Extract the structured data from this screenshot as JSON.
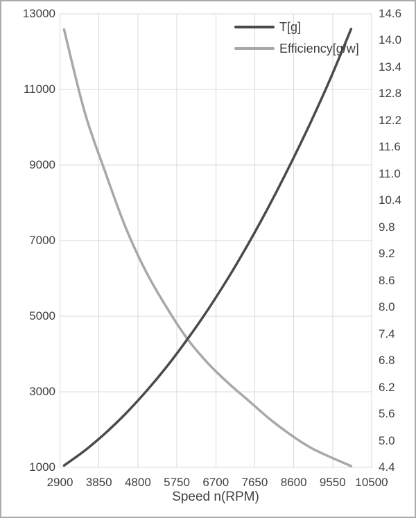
{
  "frame": {
    "background_color": "#ffffff",
    "border_color": "#ababab",
    "text_color": "#404040",
    "gridline_color": "#d9d9d9"
  },
  "chart_data": {
    "type": "line",
    "title": "",
    "xlabel": "Speed n(RPM)",
    "xlim": [
      2900,
      10500
    ],
    "x_tick_labels": [
      "2900",
      "3850",
      "4800",
      "5750",
      "6700",
      "7650",
      "8600",
      "9550",
      "10500"
    ],
    "left_axis": {
      "lim": [
        1000,
        13000
      ],
      "tick_labels": [
        "13000",
        "11000",
        "9000",
        "7000",
        "5000",
        "3000",
        "1000"
      ]
    },
    "right_axis": {
      "lim": [
        4.4,
        14.6
      ],
      "tick_labels": [
        "14.6",
        "14.0",
        "13.4",
        "12.8",
        "12.2",
        "11.6",
        "11.0",
        "10.4",
        "9.8",
        "9.2",
        "8.6",
        "8.0",
        "7.4",
        "6.8",
        "6.2",
        "5.6",
        "5.0",
        "4.4"
      ]
    },
    "grid": true,
    "legend_position": "top-right-inside",
    "series": [
      {
        "name": "T[g]",
        "axis": "left",
        "color": "#4a4a4a",
        "x": [
          3000,
          3500,
          4000,
          4500,
          5000,
          5500,
          6000,
          6500,
          7000,
          7500,
          8000,
          8500,
          9000,
          9500,
          10000
        ],
        "values": [
          1050,
          1440,
          1900,
          2420,
          3010,
          3660,
          4380,
          5160,
          6010,
          6930,
          7920,
          8980,
          10100,
          11300,
          12600
        ]
      },
      {
        "name": "Efficiency[g/w]",
        "axis": "right",
        "color": "#a8a8a8",
        "x": [
          3000,
          3500,
          4000,
          4500,
          5000,
          5500,
          6000,
          6500,
          7000,
          7500,
          8000,
          8500,
          9000,
          9500,
          10000
        ],
        "values": [
          14.25,
          12.4,
          11.05,
          9.8,
          8.8,
          8.0,
          7.3,
          6.75,
          6.3,
          5.9,
          5.5,
          5.15,
          4.85,
          4.63,
          4.43
        ]
      }
    ]
  }
}
